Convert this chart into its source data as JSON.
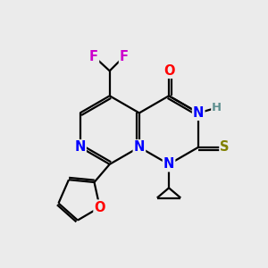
{
  "bg_color": "#ebebeb",
  "bond_color": "#000000",
  "bond_width": 1.6,
  "atom_colors": {
    "N": "#0000ff",
    "O": "#ff0000",
    "S": "#808000",
    "F": "#cc00cc",
    "H": "#5f9090",
    "C": "#000000"
  },
  "font_size": 10.5,
  "fig_size": [
    3.0,
    3.0
  ],
  "dpi": 100
}
